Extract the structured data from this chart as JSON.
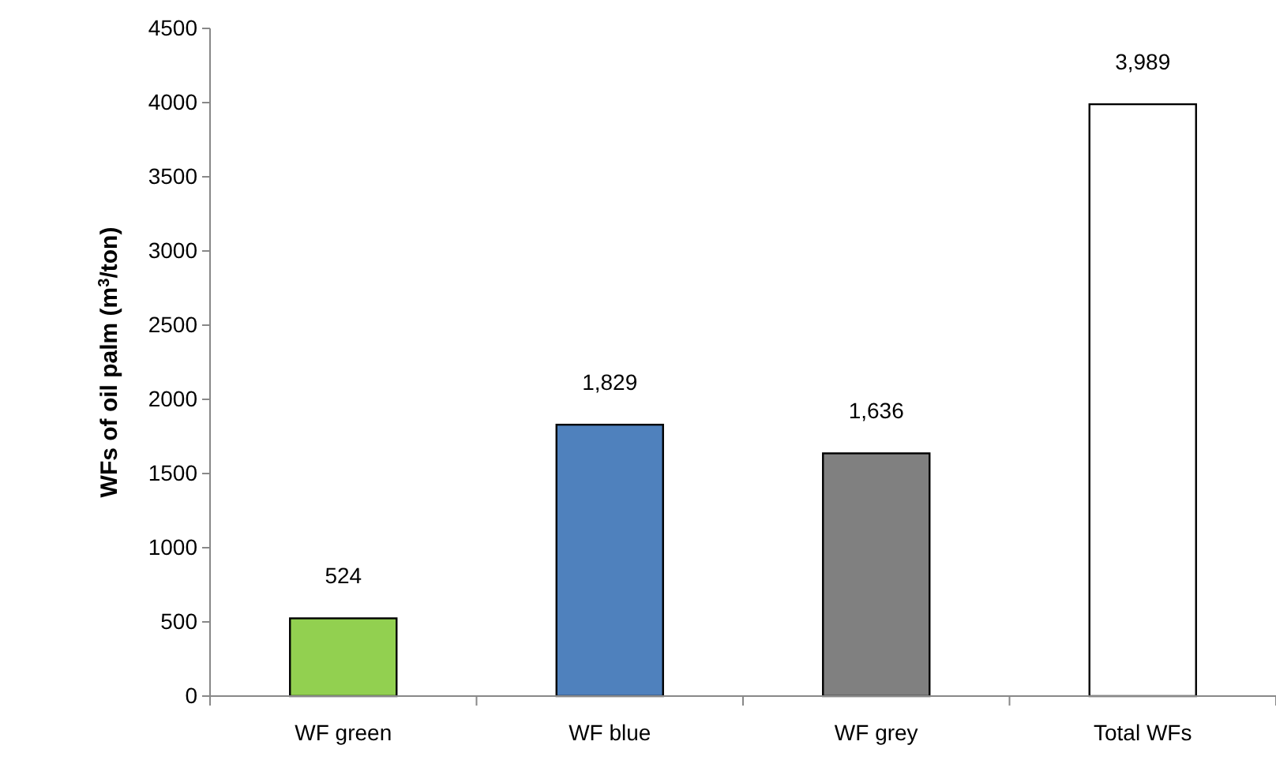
{
  "chart_data": {
    "type": "bar",
    "ylabel": "WFs of oil palm (m$^{3}$/ton)",
    "categories": [
      "WF green",
      "WF blue",
      "WF grey",
      "Total WFs"
    ],
    "values": [
      524,
      1829,
      1636,
      3989
    ],
    "value_labels": [
      "524",
      "1,829",
      "1,636",
      "3,989"
    ],
    "colors": [
      "#92d050",
      "#4f81bd",
      "#808080",
      "#ffffff"
    ],
    "ylim": [
      0,
      4500
    ],
    "yticks": [
      0,
      500,
      1000,
      1500,
      2000,
      2500,
      3000,
      3500,
      4000,
      4500
    ],
    "grid": false
  }
}
